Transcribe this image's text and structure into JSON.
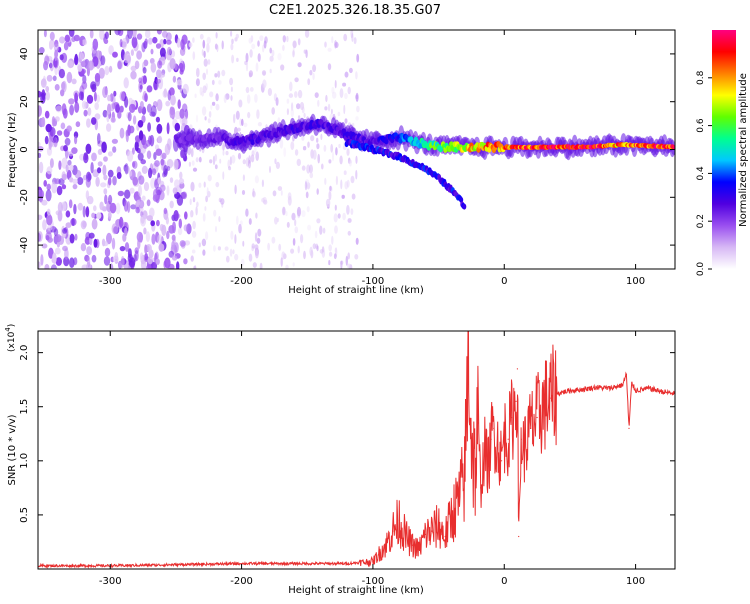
{
  "title": "C2E1.2025.326.18.35.G07",
  "chart_data": [
    {
      "type": "heatmap",
      "name": "spectrogram",
      "xlabel": "Height of straight line (km)",
      "ylabel": "Frequency (Hz)",
      "xlim": [
        -355,
        130
      ],
      "ylim": [
        -50,
        50
      ],
      "xticks": [
        -300,
        -200,
        -100,
        0,
        100
      ],
      "yticks": [
        -40,
        -20,
        0,
        20,
        40
      ],
      "colorbar": {
        "label": "Normalized spectral amplitude",
        "range": [
          0,
          1
        ],
        "ticks": [
          0.0,
          0.2,
          0.4,
          0.6,
          0.8
        ],
        "tick_labels": [
          "0.0",
          "0.2",
          "0.4",
          "0.6",
          "0.8"
        ],
        "colormap": [
          "#ffffff",
          "#d7b8f5",
          "#9a4ff0",
          "#5000e0",
          "#0000ff",
          "#00c8ff",
          "#00ff90",
          "#60ff00",
          "#ffff00",
          "#ff8000",
          "#ff0000",
          "#ff0080"
        ]
      },
      "ridge": {
        "x": [
          -250,
          -220,
          -200,
          -180,
          -160,
          -140,
          -120,
          -100,
          -80,
          -60,
          -45,
          -30,
          -20,
          -10,
          0,
          20,
          60,
          90,
          130
        ],
        "y": [
          4,
          5,
          3,
          6,
          9,
          11,
          6,
          3,
          5,
          2,
          1,
          1,
          1,
          1,
          1,
          1,
          1,
          2,
          1
        ],
        "max_amplitude": [
          0.25,
          0.25,
          0.3,
          0.3,
          0.3,
          0.3,
          0.3,
          0.3,
          0.4,
          0.6,
          0.7,
          0.8,
          0.85,
          0.9,
          0.9,
          0.95,
          1.0,
          0.9,
          1.0
        ]
      },
      "branch": {
        "x": [
          -120,
          -100,
          -80,
          -60,
          -50,
          -40,
          -35,
          -30
        ],
        "y": [
          3,
          0,
          -3,
          -8,
          -12,
          -17,
          -20,
          -24
        ]
      },
      "noise_region": {
        "x_range": [
          -355,
          -240
        ],
        "y_range": [
          -50,
          50
        ],
        "amplitude": 0.2
      },
      "sparse_region": {
        "x_range": [
          -240,
          -110
        ],
        "y_range": [
          -50,
          50
        ],
        "amplitude": 0.1
      }
    },
    {
      "type": "line",
      "name": "snr",
      "xlabel": "Height of straight line (km)",
      "ylabel": "SNR (10 * v/v)",
      "multiplier_label": "(x10",
      "multiplier_exponent": "4",
      "multiplier_suffix": ")",
      "xlim": [
        -355,
        130
      ],
      "ylim": [
        0.0,
        2.2
      ],
      "xticks": [
        -300,
        -200,
        -100,
        0,
        100
      ],
      "yticks": [
        0.5,
        1.0,
        1.5,
        2.0
      ],
      "ytick_labels": [
        "0.5",
        "1.0",
        "1.5",
        "2.0"
      ],
      "series": [
        {
          "name": "SNR",
          "color": "#e82e2e",
          "x": [
            -355,
            -300,
            -250,
            -200,
            -150,
            -120,
            -100,
            -90,
            -85,
            -80,
            -75,
            -70,
            -65,
            -60,
            -55,
            -50,
            -45,
            -40,
            -35,
            -30,
            -27,
            -25,
            -22,
            -20,
            -18,
            -15,
            -12,
            -10,
            -8,
            -5,
            -2,
            0,
            3,
            6,
            9,
            10,
            11,
            13,
            15,
            20,
            25,
            30,
            35,
            40,
            50,
            60,
            70,
            80,
            90,
            93,
            95,
            97,
            100,
            110,
            120,
            130
          ],
          "y": [
            0.03,
            0.03,
            0.04,
            0.05,
            0.05,
            0.05,
            0.07,
            0.22,
            0.35,
            0.45,
            0.3,
            0.22,
            0.18,
            0.32,
            0.35,
            0.4,
            0.3,
            0.5,
            0.62,
            0.85,
            2.2,
            1.2,
            0.9,
            1.35,
            0.75,
            1.1,
            0.95,
            1.2,
            1.3,
            1.15,
            1.0,
            1.25,
            1.2,
            1.4,
            1.55,
            1.85,
            0.3,
            1.2,
            1.1,
            1.3,
            1.4,
            1.5,
            1.58,
            1.62,
            1.65,
            1.66,
            1.68,
            1.67,
            1.7,
            1.8,
            1.3,
            1.72,
            1.65,
            1.67,
            1.64,
            1.62
          ]
        }
      ]
    }
  ]
}
